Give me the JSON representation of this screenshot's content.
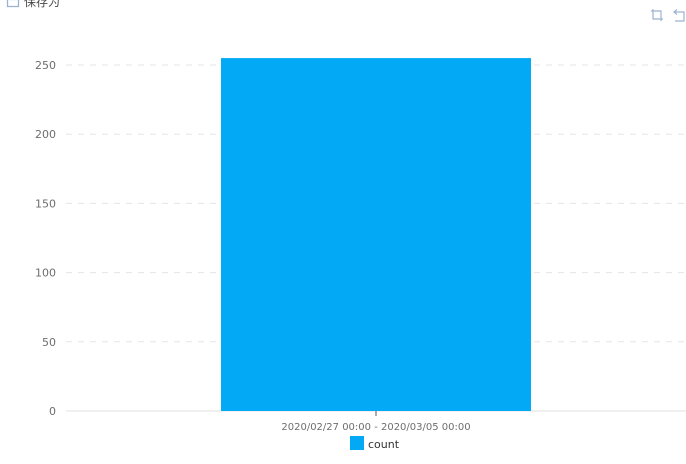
{
  "header": {
    "save_as_label": "保存为"
  },
  "toolbar": {
    "icons": [
      "restore-icon",
      "back-icon"
    ]
  },
  "colors": {
    "bar": "#03A9F4",
    "axis": "#e0e0e0",
    "grid": "#e5e5e5",
    "tick_text": "#6e6e6e",
    "icon": "#9bb5d0"
  },
  "chart_data": {
    "type": "bar",
    "categories": [
      "2020/02/27 00:00 - 2020/03/05 00:00"
    ],
    "series": [
      {
        "name": "count",
        "values": [
          255
        ]
      }
    ],
    "ylim": [
      0,
      250
    ],
    "yticks": [
      0,
      50,
      100,
      150,
      200,
      250
    ],
    "grid": true,
    "legend_position": "bottom",
    "title": "",
    "xlabel": "",
    "ylabel": ""
  }
}
